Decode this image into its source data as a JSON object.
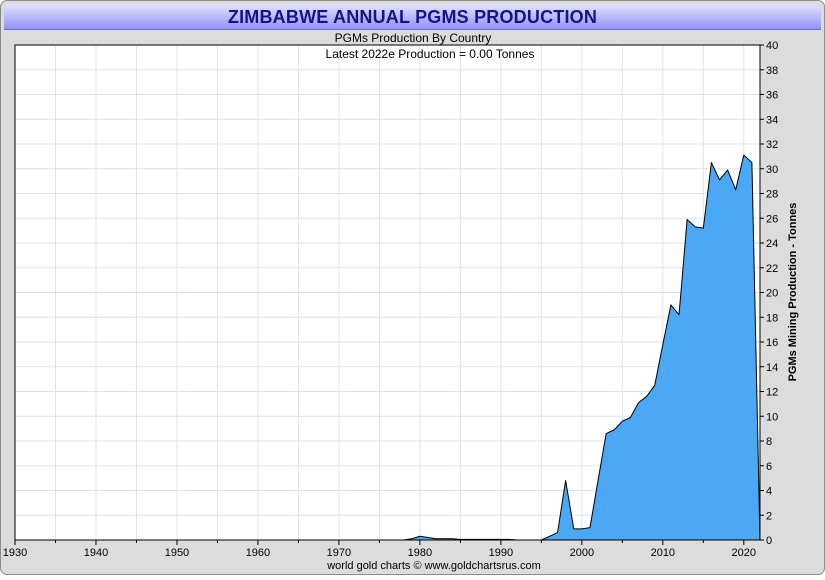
{
  "header": {
    "title": "ZIMBABWE ANNUAL PGMS PRODUCTION",
    "subtitle": "PGMs Production By Country",
    "latest": "Latest 2022e Production = 0.00 Tonnes",
    "credit": "world gold charts © www.goldchartsrus.com"
  },
  "colors": {
    "area_fill": "#4aa8f4",
    "area_line": "#000000",
    "title_text": "#14148a",
    "grid": "#dde3ea"
  },
  "chart_data": {
    "type": "area",
    "title": "ZIMBABWE ANNUAL PGMS PRODUCTION",
    "subtitle": "PGMs Production By Country",
    "xlabel": "",
    "ylabel": "PGMs Mining Production - Tonnes",
    "xlim": [
      1930,
      2022
    ],
    "ylim": [
      0,
      40
    ],
    "x_ticks": [
      1930,
      1940,
      1950,
      1960,
      1970,
      1980,
      1990,
      2000,
      2010,
      2020
    ],
    "y_ticks": [
      0,
      2,
      4,
      6,
      8,
      10,
      12,
      14,
      16,
      18,
      20,
      22,
      24,
      26,
      28,
      30,
      32,
      34,
      36,
      38,
      40
    ],
    "grid": true,
    "x": [
      1930,
      1978,
      1979,
      1980,
      1981,
      1982,
      1983,
      1984,
      1985,
      1986,
      1987,
      1988,
      1989,
      1990,
      1991,
      1992,
      1993,
      1994,
      1995,
      1996,
      1997,
      1998,
      1999,
      2000,
      2001,
      2002,
      2003,
      2004,
      2005,
      2006,
      2007,
      2008,
      2009,
      2010,
      2011,
      2012,
      2013,
      2014,
      2015,
      2016,
      2017,
      2018,
      2019,
      2020,
      2021,
      2022
    ],
    "values": [
      0,
      0,
      0.1,
      0.3,
      0.2,
      0.1,
      0.1,
      0.1,
      0.05,
      0.05,
      0.05,
      0.05,
      0.05,
      0.05,
      0.05,
      0,
      0,
      0,
      0,
      0.3,
      0.6,
      4.8,
      0.9,
      0.9,
      1.0,
      4.8,
      8.6,
      8.9,
      9.6,
      9.9,
      11.1,
      11.6,
      12.5,
      15.8,
      19.0,
      18.2,
      25.9,
      25.3,
      25.2,
      30.5,
      29.1,
      29.9,
      28.3,
      31.1,
      30.5,
      0
    ]
  }
}
